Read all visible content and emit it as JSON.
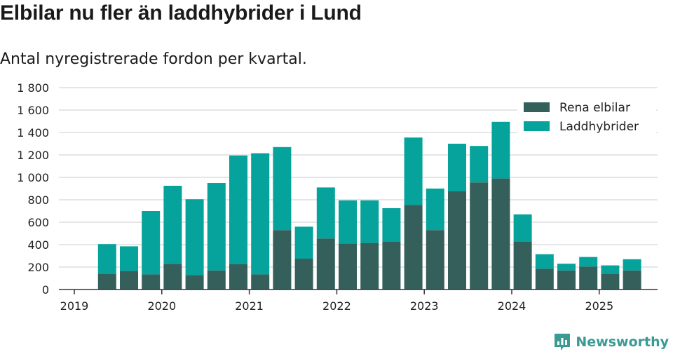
{
  "header": {
    "title": "Elbilar nu fler än laddhybrider i Lund",
    "subtitle": "Antal nyregistrerade fordon per kvartal."
  },
  "branding": {
    "name": "Newsworthy",
    "icon": "newsworthy-logo-icon"
  },
  "colors": {
    "series_0": "#355f5b",
    "series_1": "#05a39b",
    "grid": "#dddddd",
    "axis": "#333333"
  },
  "chart_data": {
    "type": "bar",
    "stacked": true,
    "categories": [
      "2019 Q2",
      "2019 Q3",
      "2019 Q4",
      "2020 Q1",
      "2020 Q2",
      "2020 Q3",
      "2020 Q4",
      "2021 Q1",
      "2021 Q2",
      "2021 Q3",
      "2021 Q4",
      "2022 Q1",
      "2022 Q2",
      "2022 Q3",
      "2022 Q4",
      "2023 Q1",
      "2023 Q2",
      "2023 Q3",
      "2023 Q4",
      "2024 Q1",
      "2024 Q2",
      "2024 Q3",
      "2024 Q4",
      "2025 Q1",
      "2025 Q2"
    ],
    "series": [
      {
        "name": "Rena elbilar",
        "values": [
          140,
          165,
          135,
          230,
          130,
          170,
          225,
          135,
          530,
          275,
          455,
          410,
          415,
          425,
          755,
          530,
          875,
          955,
          990,
          425,
          185,
          170,
          205,
          140,
          170
        ]
      },
      {
        "name": "Laddhybrider",
        "values": [
          265,
          220,
          565,
          695,
          675,
          780,
          970,
          1080,
          740,
          285,
          455,
          385,
          380,
          300,
          600,
          370,
          425,
          325,
          505,
          245,
          130,
          60,
          85,
          75,
          100
        ]
      }
    ],
    "ylim": [
      0,
      1800
    ],
    "yticks": [
      "0",
      "200",
      "400",
      "600",
      "800",
      "1 000",
      "1 200",
      "1 400",
      "1 600",
      "1 800"
    ],
    "ytick_values": [
      0,
      200,
      400,
      600,
      800,
      1000,
      1200,
      1400,
      1600,
      1800
    ],
    "xticks": [
      "2019",
      "2020",
      "2021",
      "2022",
      "2023",
      "2024",
      "2025"
    ],
    "grid": true,
    "legend_position": "top-right"
  }
}
